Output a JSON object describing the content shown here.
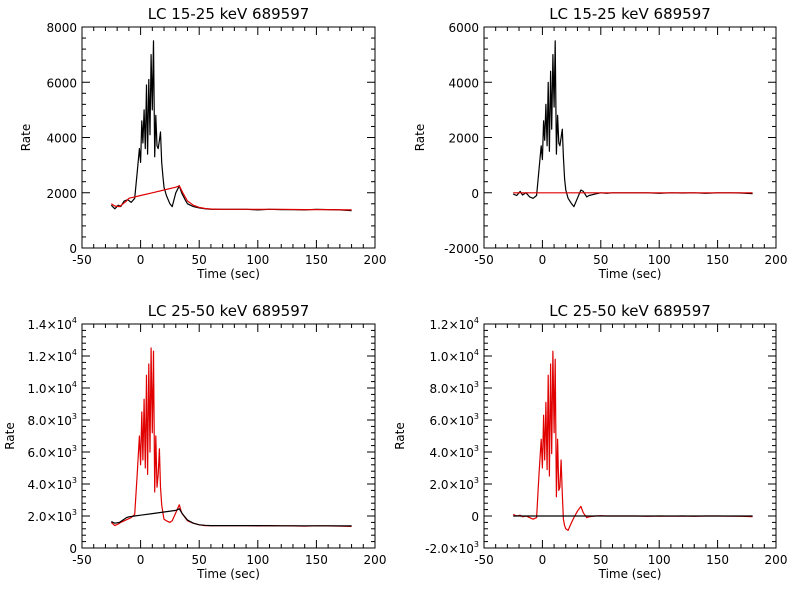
{
  "colors": {
    "black": "#000000",
    "red": "#e00000",
    "background": "#ffffff"
  },
  "chart_data": [
    {
      "type": "line",
      "title": "LC 15-25 keV  689597",
      "xlabel": "Time (sec)",
      "ylabel": "Rate",
      "xlim": [
        -50,
        200
      ],
      "ylim": [
        0,
        8000
      ],
      "xticks": [
        -50,
        0,
        50,
        100,
        150,
        200
      ],
      "yticks": [
        0,
        2000,
        4000,
        6000,
        8000
      ],
      "ytick_labels": [
        {
          "m": "0"
        },
        {
          "m": "2000"
        },
        {
          "m": "4000"
        },
        {
          "m": "6000"
        },
        {
          "m": "8000"
        }
      ],
      "series": [
        {
          "color": "#000000",
          "x": [
            -25,
            -22,
            -19,
            -17,
            -14,
            -11,
            -8,
            -5,
            -3,
            -1,
            0,
            1,
            2,
            3,
            4,
            5,
            6,
            7,
            8,
            9,
            10,
            11,
            12,
            13,
            14,
            15,
            16,
            17,
            18,
            19,
            20,
            22,
            25,
            27,
            30,
            33,
            35,
            38,
            40,
            45,
            50,
            55,
            60,
            70,
            80,
            90,
            100,
            110,
            120,
            130,
            140,
            150,
            160,
            170,
            180
          ],
          "y": [
            1550,
            1420,
            1550,
            1500,
            1700,
            1750,
            1650,
            1800,
            2700,
            3600,
            3100,
            4600,
            3800,
            5000,
            3600,
            5900,
            3400,
            6100,
            4100,
            7000,
            5000,
            7500,
            3300,
            4800,
            3700,
            3600,
            3900,
            4200,
            3100,
            2600,
            2200,
            1900,
            1600,
            1500,
            2000,
            2250,
            2000,
            1750,
            1600,
            1500,
            1450,
            1420,
            1400,
            1400,
            1400,
            1400,
            1380,
            1400,
            1390,
            1390,
            1380,
            1400,
            1390,
            1380,
            1350
          ]
        },
        {
          "color": "#e00000",
          "x": [
            -25,
            -22,
            -18,
            -15,
            -12,
            -10,
            -8,
            -5,
            0,
            10,
            20,
            30,
            33,
            36,
            40,
            45,
            50,
            55,
            60,
            70,
            80,
            100,
            120,
            140,
            160,
            180
          ],
          "y": [
            1600,
            1520,
            1500,
            1600,
            1700,
            1800,
            1820,
            1850,
            1900,
            2000,
            2100,
            2200,
            2250,
            2000,
            1700,
            1550,
            1470,
            1430,
            1410,
            1400,
            1400,
            1400,
            1400,
            1390,
            1390,
            1380
          ]
        }
      ]
    },
    {
      "type": "line",
      "title": "LC 15-25 keV  689597",
      "xlabel": "Time (sec)",
      "ylabel": "Rate",
      "xlim": [
        -50,
        200
      ],
      "ylim": [
        -2000,
        6000
      ],
      "xticks": [
        -50,
        0,
        50,
        100,
        150,
        200
      ],
      "yticks": [
        -2000,
        0,
        2000,
        4000,
        6000
      ],
      "ytick_labels": [
        {
          "m": "-2000"
        },
        {
          "m": "0"
        },
        {
          "m": "2000"
        },
        {
          "m": "4000"
        },
        {
          "m": "6000"
        }
      ],
      "series": [
        {
          "color": "#000000",
          "x": [
            -25,
            -22,
            -19,
            -17,
            -14,
            -11,
            -8,
            -5,
            -3,
            -1,
            0,
            1,
            2,
            3,
            4,
            5,
            6,
            7,
            8,
            9,
            10,
            11,
            12,
            13,
            14,
            15,
            16,
            17,
            18,
            19,
            20,
            22,
            25,
            27,
            30,
            33,
            35,
            38,
            40,
            45,
            50,
            55,
            60,
            70,
            80,
            90,
            100,
            110,
            120,
            130,
            140,
            150,
            160,
            170,
            180
          ],
          "y": [
            -50,
            -100,
            50,
            -80,
            0,
            -150,
            -200,
            -100,
            800,
            1700,
            1200,
            2600,
            1900,
            3200,
            1700,
            4000,
            1500,
            4400,
            2300,
            5000,
            3100,
            5500,
            1400,
            2800,
            1800,
            1700,
            2000,
            2300,
            1300,
            500,
            100,
            -200,
            -400,
            -500,
            -200,
            100,
            50,
            -150,
            -100,
            -50,
            0,
            -20,
            0,
            0,
            0,
            0,
            -20,
            0,
            -10,
            0,
            -20,
            0,
            0,
            -10,
            -30
          ]
        },
        {
          "color": "#e00000",
          "x": [
            -25,
            0,
            50,
            100,
            150,
            180
          ],
          "y": [
            0,
            0,
            0,
            0,
            0,
            0
          ]
        }
      ]
    },
    {
      "type": "line",
      "title": "LC 25-50 keV  689597",
      "xlabel": "Time (sec)",
      "ylabel": "Rate",
      "xlim": [
        -50,
        200
      ],
      "ylim": [
        0,
        14000
      ],
      "xticks": [
        -50,
        0,
        50,
        100,
        150,
        200
      ],
      "yticks": [
        0,
        2000,
        4000,
        6000,
        8000,
        10000,
        12000,
        14000
      ],
      "ytick_labels": [
        {
          "m": "0"
        },
        {
          "m": "2.0×10",
          "e": "3"
        },
        {
          "m": "4.0×10",
          "e": "3"
        },
        {
          "m": "6.0×10",
          "e": "3"
        },
        {
          "m": "8.0×10",
          "e": "3"
        },
        {
          "m": "1.0×10",
          "e": "4"
        },
        {
          "m": "1.2×10",
          "e": "4"
        },
        {
          "m": "1.4×10",
          "e": "4"
        }
      ],
      "series": [
        {
          "color": "#e00000",
          "x": [
            -25,
            -22,
            -19,
            -17,
            -14,
            -11,
            -8,
            -5,
            -3,
            -1,
            0,
            1,
            2,
            3,
            4,
            5,
            6,
            7,
            8,
            9,
            10,
            11,
            12,
            13,
            14,
            15,
            16,
            17,
            18,
            19,
            20,
            22,
            25,
            27,
            30,
            33,
            35,
            38,
            40,
            45,
            50,
            55,
            60,
            70,
            80,
            90,
            100,
            110,
            120,
            130,
            140,
            150,
            160,
            170,
            180
          ],
          "y": [
            1600,
            1400,
            1500,
            1600,
            1700,
            1800,
            1900,
            2100,
            4500,
            7000,
            5200,
            8500,
            5500,
            9300,
            5000,
            10800,
            4600,
            11500,
            6000,
            12500,
            7200,
            12300,
            3500,
            7000,
            3800,
            4600,
            6200,
            3800,
            2700,
            2200,
            1800,
            1700,
            1600,
            1700,
            2200,
            2700,
            2200,
            1900,
            1700,
            1550,
            1450,
            1400,
            1400,
            1400,
            1400,
            1400,
            1380,
            1400,
            1390,
            1380,
            1370,
            1390,
            1380,
            1370,
            1350
          ]
        },
        {
          "color": "#000000",
          "x": [
            -25,
            -22,
            -18,
            -15,
            -12,
            -10,
            -5,
            0,
            10,
            20,
            30,
            33,
            36,
            40,
            45,
            50,
            55,
            60,
            70,
            80,
            100,
            120,
            140,
            160,
            180
          ],
          "y": [
            1650,
            1550,
            1600,
            1750,
            1900,
            1950,
            2000,
            2050,
            2150,
            2250,
            2350,
            2450,
            2100,
            1750,
            1550,
            1450,
            1420,
            1400,
            1400,
            1400,
            1400,
            1390,
            1390,
            1390,
            1380
          ]
        }
      ]
    },
    {
      "type": "line",
      "title": "LC 25-50 keV  689597",
      "xlabel": "Time (sec)",
      "ylabel": "Rate",
      "xlim": [
        -50,
        200
      ],
      "ylim": [
        -2000,
        12000
      ],
      "xticks": [
        -50,
        0,
        50,
        100,
        150,
        200
      ],
      "yticks": [
        -2000,
        0,
        2000,
        4000,
        6000,
        8000,
        10000,
        12000
      ],
      "ytick_labels": [
        {
          "m": "-2.0×10",
          "e": "3"
        },
        {
          "m": "0"
        },
        {
          "m": "2.0×10",
          "e": "3"
        },
        {
          "m": "4.0×10",
          "e": "3"
        },
        {
          "m": "6.0×10",
          "e": "3"
        },
        {
          "m": "8.0×10",
          "e": "3"
        },
        {
          "m": "1.0×10",
          "e": "4"
        },
        {
          "m": "1.2×10",
          "e": "4"
        }
      ],
      "series": [
        {
          "color": "#e00000",
          "x": [
            -25,
            -22,
            -19,
            -17,
            -14,
            -11,
            -8,
            -5,
            -3,
            -1,
            0,
            1,
            2,
            3,
            4,
            5,
            6,
            7,
            8,
            9,
            10,
            11,
            12,
            13,
            14,
            15,
            16,
            17,
            18,
            19,
            20,
            22,
            25,
            27,
            30,
            33,
            35,
            38,
            40,
            45,
            50,
            55,
            60,
            70,
            80,
            90,
            100,
            110,
            120,
            130,
            140,
            150,
            160,
            170,
            180
          ],
          "y": [
            100,
            0,
            50,
            -50,
            0,
            -100,
            -200,
            -100,
            2500,
            4800,
            3000,
            6300,
            3500,
            7100,
            2900,
            8800,
            2500,
            9500,
            3900,
            10300,
            5200,
            9800,
            1200,
            4800,
            1600,
            1800,
            3500,
            1400,
            -200,
            -600,
            -800,
            -900,
            -400,
            -100,
            300,
            600,
            200,
            -100,
            -50,
            0,
            20,
            0,
            0,
            0,
            0,
            -20,
            0,
            -10,
            0,
            -20,
            0,
            0,
            -10,
            -20,
            -40
          ]
        },
        {
          "color": "#000000",
          "x": [
            -25,
            0,
            50,
            100,
            150,
            180
          ],
          "y": [
            0,
            0,
            0,
            0,
            0,
            0
          ]
        }
      ]
    }
  ]
}
